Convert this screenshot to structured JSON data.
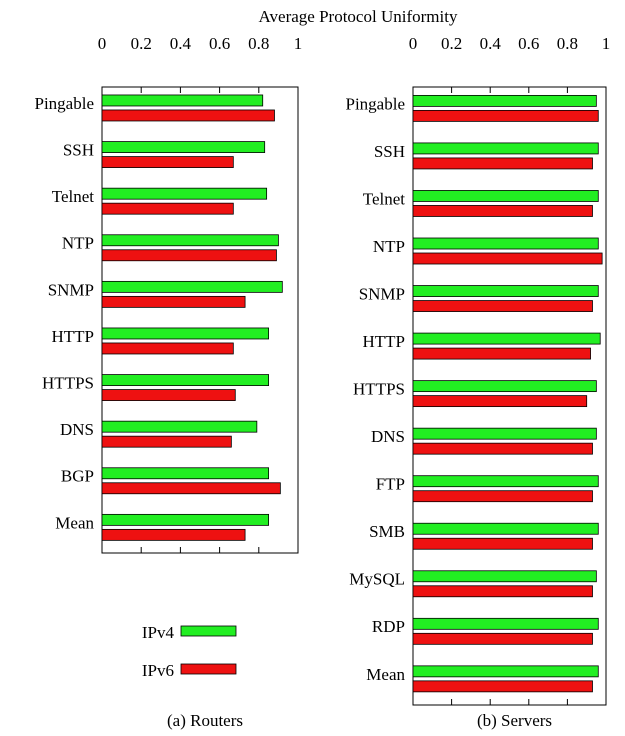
{
  "title": "Average Protocol Uniformity",
  "chart_data": [
    {
      "type": "barh",
      "caption": "(a) Routers",
      "categories": [
        "Pingable",
        "SSH",
        "Telnet",
        "NTP",
        "SNMP",
        "HTTP",
        "HTTPS",
        "DNS",
        "BGP",
        "Mean"
      ],
      "series": [
        {
          "name": "IPv4",
          "color": "#22ee22",
          "values": [
            0.82,
            0.83,
            0.84,
            0.9,
            0.92,
            0.85,
            0.85,
            0.79,
            0.85,
            0.85
          ]
        },
        {
          "name": "IPv6",
          "color": "#ee1111",
          "values": [
            0.88,
            0.67,
            0.67,
            0.89,
            0.73,
            0.67,
            0.68,
            0.66,
            0.91,
            0.73
          ]
        }
      ],
      "xlim": [
        0,
        1
      ],
      "xticks": [
        0,
        0.2,
        0.4,
        0.6,
        0.8,
        1
      ],
      "legend": "bottom"
    },
    {
      "type": "barh",
      "caption": "(b) Servers",
      "categories": [
        "Pingable",
        "SSH",
        "Telnet",
        "NTP",
        "SNMP",
        "HTTP",
        "HTTPS",
        "DNS",
        "FTP",
        "SMB",
        "MySQL",
        "RDP",
        "Mean"
      ],
      "series": [
        {
          "color": "#22ee22",
          "values": [
            0.95,
            0.96,
            0.96,
            0.96,
            0.96,
            0.97,
            0.95,
            0.95,
            0.96,
            0.96,
            0.95,
            0.96,
            0.96
          ]
        },
        {
          "color": "#ee1111",
          "values": [
            0.96,
            0.93,
            0.93,
            0.98,
            0.93,
            0.92,
            0.9,
            0.93,
            0.93,
            0.93,
            0.93,
            0.93,
            0.93
          ]
        }
      ],
      "xlim": [
        0,
        1
      ],
      "xticks": [
        0,
        0.2,
        0.4,
        0.6,
        0.8,
        1
      ]
    }
  ]
}
